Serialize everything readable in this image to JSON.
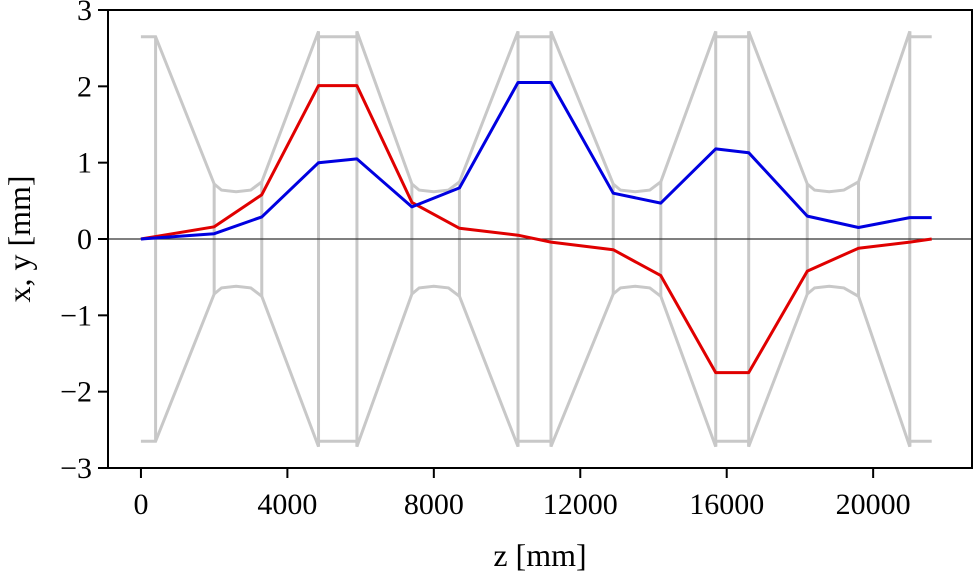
{
  "chart_data": {
    "type": "line",
    "xlabel": "z [mm]",
    "ylabel": "x, y [mm]",
    "xlim": [
      -900,
      22700
    ],
    "ylim": [
      -3,
      3
    ],
    "xticks": [
      0,
      4000,
      8000,
      12000,
      16000,
      20000
    ],
    "xtick_labels": [
      "0",
      "4000",
      "8000",
      "12000",
      "16000",
      "20000"
    ],
    "yticks": [
      -3,
      -2,
      -1,
      0,
      1,
      2,
      3
    ],
    "ytick_labels": [
      "−3",
      "−2",
      "−1",
      "0",
      "1",
      "2",
      "3"
    ],
    "grid": false,
    "zero_line": true,
    "series": [
      {
        "color": "#e00000",
        "x": [
          0,
          2000,
          3300,
          4850,
          5900,
          7400,
          8700,
          10300,
          11200,
          12900,
          14200,
          15700,
          16600,
          18200,
          19600,
          21000,
          21600
        ],
        "y": [
          0,
          0.16,
          0.58,
          2.01,
          2.01,
          0.48,
          0.14,
          0.05,
          -0.04,
          -0.14,
          -0.48,
          -1.75,
          -1.75,
          -0.42,
          -0.12,
          -0.04,
          0
        ]
      },
      {
        "color": "#0000e0",
        "x": [
          0,
          2000,
          3300,
          4850,
          5900,
          7400,
          8700,
          10300,
          11200,
          12900,
          14200,
          15700,
          16600,
          18200,
          19600,
          21000,
          21600
        ],
        "y": [
          0,
          0.07,
          0.29,
          1.0,
          1.05,
          0.42,
          0.67,
          2.05,
          2.05,
          0.6,
          0.47,
          1.18,
          1.13,
          0.3,
          0.15,
          0.28,
          0.28
        ]
      },
      {
        "color": "#c8c8c8",
        "role": "aperture-upper",
        "x": [
          0,
          400,
          2000,
          2200,
          2600,
          3000,
          3300,
          4850,
          4850,
          5900,
          5900,
          7400,
          7600,
          8000,
          8400,
          8700,
          10300,
          10300,
          11200,
          11200,
          12900,
          13100,
          13500,
          13900,
          14200,
          15700,
          15700,
          16600,
          16600,
          18200,
          18400,
          18800,
          19200,
          19600,
          21000,
          21000,
          21600
        ],
        "y": [
          2.65,
          2.65,
          0.72,
          0.64,
          0.62,
          0.64,
          0.75,
          2.72,
          2.65,
          2.65,
          2.72,
          0.72,
          0.64,
          0.62,
          0.64,
          0.75,
          2.72,
          2.65,
          2.65,
          2.72,
          0.72,
          0.64,
          0.62,
          0.64,
          0.75,
          2.72,
          2.65,
          2.65,
          2.72,
          0.72,
          0.64,
          0.62,
          0.64,
          0.75,
          2.72,
          2.65,
          2.65
        ]
      },
      {
        "color": "#c8c8c8",
        "role": "aperture-lower",
        "x": [
          0,
          400,
          2000,
          2200,
          2600,
          3000,
          3300,
          4850,
          4850,
          5900,
          5900,
          7400,
          7600,
          8000,
          8400,
          8700,
          10300,
          10300,
          11200,
          11200,
          12900,
          13100,
          13500,
          13900,
          14200,
          15700,
          15700,
          16600,
          16600,
          18200,
          18400,
          18800,
          19200,
          19600,
          21000,
          21000,
          21600
        ],
        "y": [
          -2.65,
          -2.65,
          -0.72,
          -0.64,
          -0.62,
          -0.64,
          -0.75,
          -2.72,
          -2.65,
          -2.65,
          -2.72,
          -0.72,
          -0.64,
          -0.62,
          -0.64,
          -0.75,
          -2.72,
          -2.65,
          -2.65,
          -2.72,
          -0.72,
          -0.64,
          -0.62,
          -0.64,
          -0.75,
          -2.72,
          -2.65,
          -2.65,
          -2.72,
          -0.72,
          -0.64,
          -0.62,
          -0.64,
          -0.75,
          -2.72,
          -2.65,
          -2.65
        ]
      }
    ],
    "element_boundaries": [
      400,
      2000,
      3300,
      4850,
      5900,
      7400,
      8700,
      10300,
      11200,
      12900,
      14200,
      15700,
      16600,
      18200,
      19600,
      21000
    ]
  }
}
